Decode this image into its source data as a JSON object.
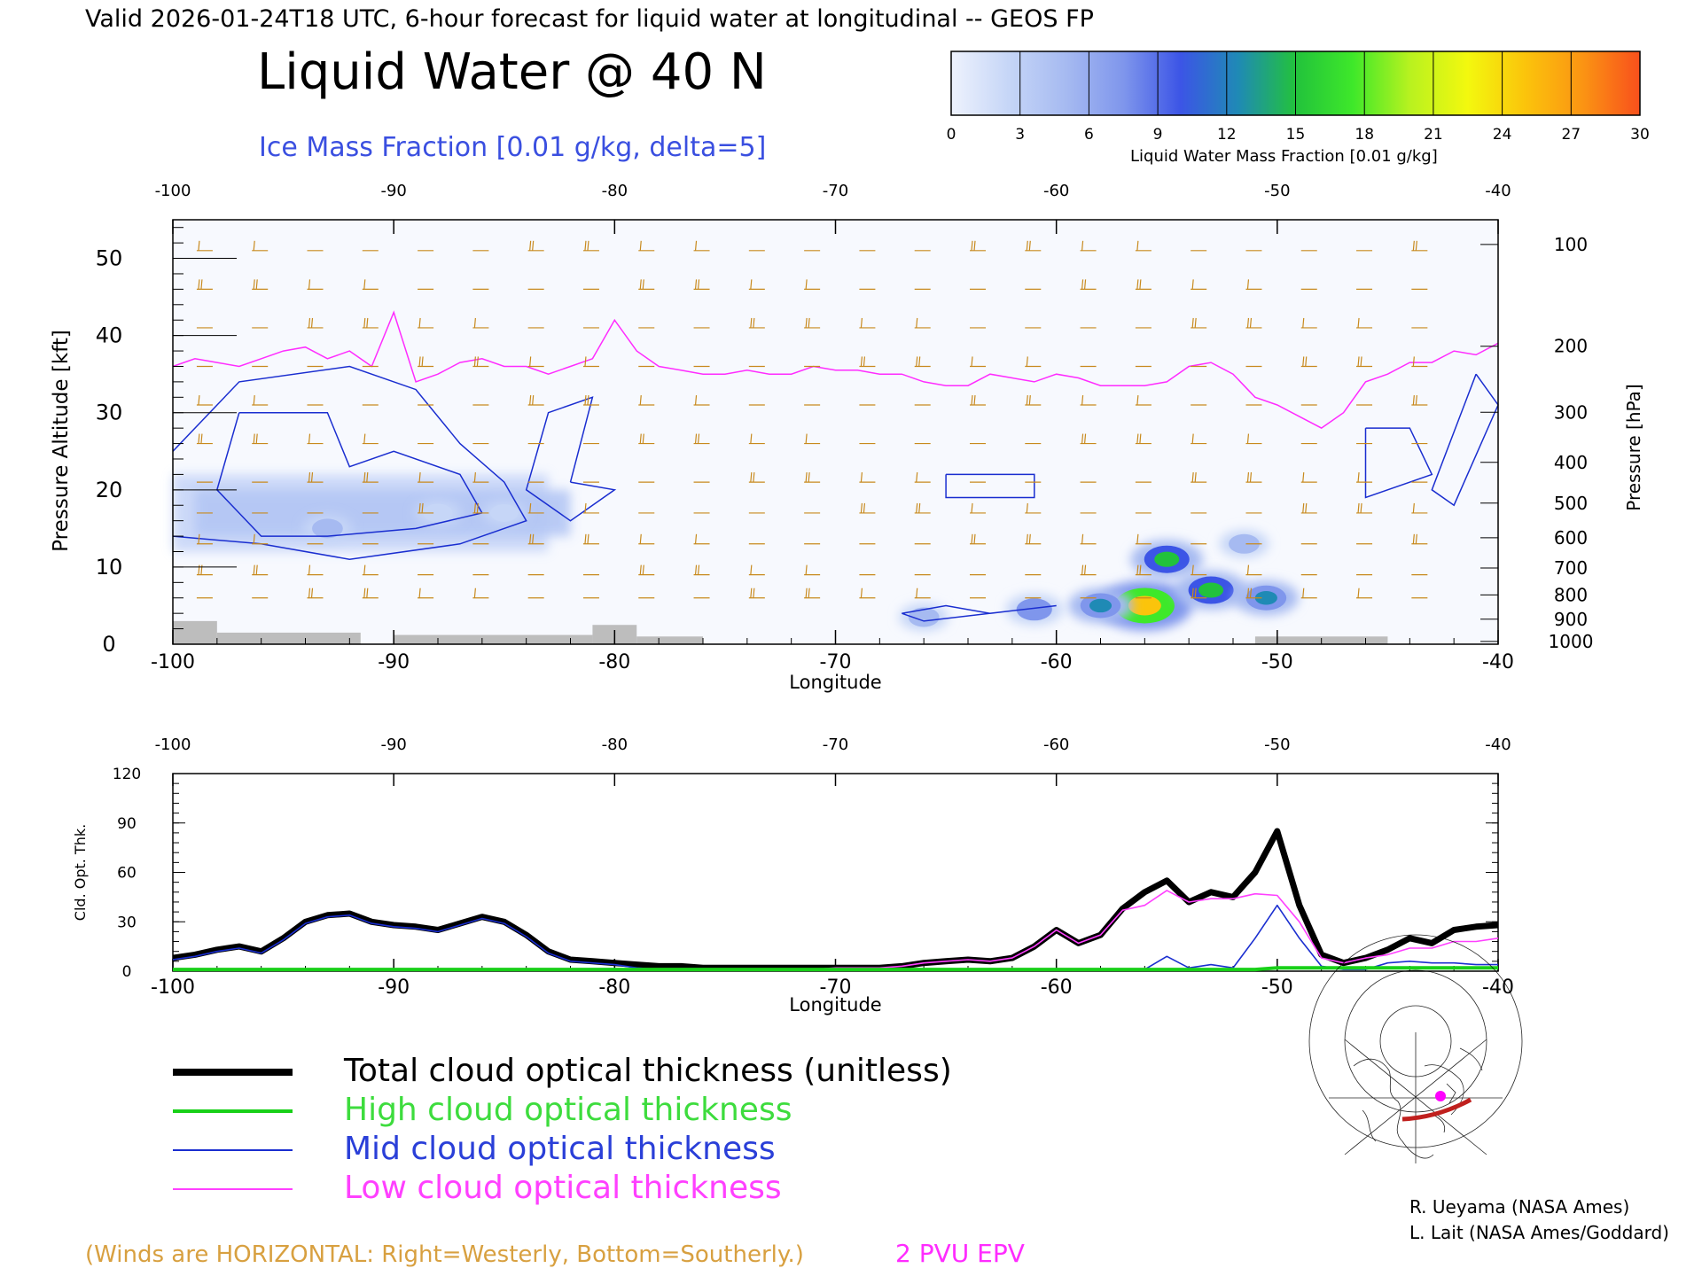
{
  "header": {
    "top_line": "Valid 2026-01-24T18 UTC, 6-hour forecast for liquid water at longitudinal -- GEOS FP",
    "title": "Liquid Water @ 40 N",
    "subtitle": "Ice Mass Fraction [0.01 g/kg, delta=5]"
  },
  "colorbar": {
    "label": "Liquid Water Mass Fraction [0.01 g/kg]",
    "ticks": [
      "0",
      "3",
      "6",
      "9",
      "12",
      "15",
      "18",
      "21",
      "24",
      "27",
      "30"
    ],
    "colors": [
      "#eef2fd",
      "#c6d6f7",
      "#a6baf1",
      "#7f96ec",
      "#3c55e6",
      "#1f8ab5",
      "#22c23c",
      "#3ee82a",
      "#b9f21f",
      "#f3f80e",
      "#fbc40b",
      "#fb9413",
      "#f8501c"
    ]
  },
  "credits": [
    "R. Ueyama (NASA Ames)",
    "L. Lait (NASA Ames/Goddard)"
  ],
  "footer": {
    "winds_note": "(Winds are HORIZONTAL: Right=Westerly, Bottom=Southerly.)",
    "epv_note": "2 PVU EPV"
  },
  "colors": {
    "wind": "#c88a1e",
    "epv": "#ff2cff",
    "ice": "#1a2ed0",
    "total": "#000000",
    "high": "#18d018",
    "mid": "#1a2ed0",
    "low": "#ff40ff",
    "legend_high_text": "#3ddc3d",
    "legend_mid_text": "#2a3fd8",
    "legend_low_text": "#ff40ff",
    "footer_winds_text": "#d8a040",
    "footer_epv_text": "#ff2cff",
    "subtitle_text": "#3a4fe0"
  },
  "chart_data": [
    {
      "type": "heatmap",
      "name": "cross-section",
      "xlabel": "Longitude",
      "ylabel_left": "Pressure Altitude [kft]",
      "ylabel_right": "Pressure [hPa]",
      "xlim": [
        -100,
        -40
      ],
      "ylim": [
        0,
        55
      ],
      "x_ticks": [
        "-100",
        "-90",
        "-80",
        "-70",
        "-60",
        "-50",
        "-40"
      ],
      "y_ticks": [
        "0",
        "10",
        "20",
        "30",
        "40",
        "50"
      ],
      "pressure_ticks": [
        "100",
        "200",
        "300",
        "400",
        "500",
        "600",
        "700",
        "800",
        "900",
        "1000"
      ],
      "epv_2pvu_line": {
        "lon": [
          -100,
          -99,
          -98,
          -97,
          -96,
          -95,
          -94,
          -93,
          -92,
          -91,
          -90,
          -89,
          -88,
          -87,
          -86,
          -85,
          -84,
          -83,
          -82,
          -81,
          -80,
          -79,
          -78,
          -77,
          -76,
          -75,
          -74,
          -73,
          -72,
          -71,
          -70,
          -69,
          -68,
          -67,
          -66,
          -65,
          -64,
          -63,
          -62,
          -61,
          -60,
          -59,
          -58,
          -57,
          -56,
          -55,
          -54,
          -53,
          -52,
          -51,
          -50,
          -49,
          -48,
          -47,
          -46,
          -45,
          -44,
          -43,
          -42,
          -41,
          -40
        ],
        "kft": [
          36,
          37,
          36.5,
          36,
          37,
          38,
          38.5,
          37,
          38,
          36,
          43,
          34,
          35,
          36.5,
          37,
          36,
          36,
          35,
          36,
          37,
          42,
          38,
          36,
          35.5,
          35,
          35,
          35.5,
          35,
          35,
          36,
          35.5,
          35.5,
          35,
          35,
          34,
          33.5,
          33.5,
          35,
          34.5,
          34,
          35,
          34.5,
          33.5,
          33.5,
          33.5,
          34,
          36,
          36.5,
          35,
          32,
          31,
          29.5,
          28,
          30,
          34,
          35,
          36.5,
          36.5,
          38,
          37.5,
          39
        ]
      },
      "liquid_water_max": 30,
      "liquid_water_cells": [
        {
          "lon": -56,
          "kft": 5,
          "value": 24
        },
        {
          "lon": -55,
          "kft": 11,
          "value": 15
        },
        {
          "lon": -53,
          "kft": 7,
          "value": 15
        },
        {
          "lon": -50.5,
          "kft": 6,
          "value": 12
        },
        {
          "lon": -58,
          "kft": 5,
          "value": 12
        },
        {
          "lon": -61,
          "kft": 4.5,
          "value": 9
        },
        {
          "lon": -51.5,
          "kft": 13,
          "value": 6
        },
        {
          "lon": -66,
          "kft": 3.5,
          "value": 6
        },
        {
          "lon": -93,
          "kft": 15,
          "value": 6
        },
        {
          "lon": -88,
          "kft": 17,
          "value": 5
        },
        {
          "lon": -85,
          "kft": 17,
          "value": 4
        }
      ]
    },
    {
      "type": "line",
      "name": "cloud-optical-thickness",
      "xlabel": "Longitude",
      "ylabel": "Cld. Opt. Thk.",
      "xlim": [
        -100,
        -40
      ],
      "ylim": [
        0,
        120
      ],
      "x_ticks": [
        "-100",
        "-90",
        "-80",
        "-70",
        "-60",
        "-50",
        "-40"
      ],
      "y_ticks": [
        "0",
        "30",
        "60",
        "90",
        "120"
      ],
      "x": [
        -100,
        -99,
        -98,
        -97,
        -96,
        -95,
        -94,
        -93,
        -92,
        -91,
        -90,
        -89,
        -88,
        -87,
        -86,
        -85,
        -84,
        -83,
        -82,
        -81,
        -80,
        -79,
        -78,
        -77,
        -76,
        -75,
        -74,
        -73,
        -72,
        -71,
        -70,
        -69,
        -68,
        -67,
        -66,
        -65,
        -64,
        -63,
        -62,
        -61,
        -60,
        -59,
        -58,
        -57,
        -56,
        -55,
        -54,
        -53,
        -52,
        -51,
        -50,
        -49,
        -48,
        -47,
        -46,
        -45,
        -44,
        -43,
        -42,
        -41,
        -40
      ],
      "series": [
        {
          "name": "Total cloud optical thickness (unitless)",
          "values": [
            8,
            10,
            13,
            15,
            12,
            20,
            30,
            34,
            35,
            30,
            28,
            27,
            25,
            29,
            33,
            30,
            22,
            12,
            7,
            6,
            5,
            4,
            3,
            3,
            2,
            2,
            2,
            2,
            2,
            2,
            2,
            2,
            2,
            3,
            5,
            6,
            7,
            6,
            8,
            15,
            25,
            17,
            22,
            38,
            48,
            55,
            42,
            48,
            45,
            60,
            85,
            40,
            10,
            5,
            8,
            13,
            20,
            17,
            25,
            27,
            28
          ]
        },
        {
          "name": "High cloud optical thickness",
          "values": [
            1,
            1,
            1,
            1,
            1,
            1,
            1,
            1,
            1,
            1,
            1,
            1,
            1,
            1,
            1,
            1,
            1,
            1,
            1,
            1,
            1,
            1,
            1,
            1,
            1,
            1,
            1,
            1,
            1,
            1,
            1,
            1,
            1,
            1,
            1,
            1,
            1,
            1,
            1,
            1,
            1,
            1,
            1,
            1,
            1,
            1,
            1,
            1,
            1,
            1,
            2,
            2,
            2,
            2,
            2,
            2,
            2,
            2,
            2,
            2,
            2
          ]
        },
        {
          "name": "Mid cloud optical thickness",
          "values": [
            7,
            9,
            12,
            14,
            11,
            19,
            29,
            33,
            34,
            29,
            27,
            26,
            24,
            28,
            32,
            29,
            21,
            11,
            6,
            5,
            4,
            2,
            1,
            1,
            1,
            1,
            1,
            1,
            1,
            1,
            1,
            1,
            1,
            1,
            1,
            1,
            1,
            1,
            1,
            1,
            1,
            1,
            1,
            1,
            1,
            9,
            2,
            4,
            2,
            20,
            40,
            20,
            3,
            1,
            1,
            5,
            6,
            5,
            5,
            4,
            4
          ]
        },
        {
          "name": "Low cloud optical thickness",
          "values": [
            1,
            1,
            1,
            1,
            1,
            1,
            1,
            1,
            1,
            1,
            1,
            1,
            1,
            1,
            1,
            1,
            1,
            1,
            1,
            1,
            1,
            1,
            1,
            1,
            1,
            1,
            1,
            1,
            1,
            1,
            2,
            2,
            2,
            3,
            5,
            6,
            7,
            6,
            8,
            15,
            25,
            17,
            22,
            37,
            40,
            49,
            42,
            44,
            44,
            47,
            46,
            30,
            8,
            5,
            8,
            10,
            14,
            14,
            18,
            18,
            20
          ]
        }
      ]
    }
  ]
}
